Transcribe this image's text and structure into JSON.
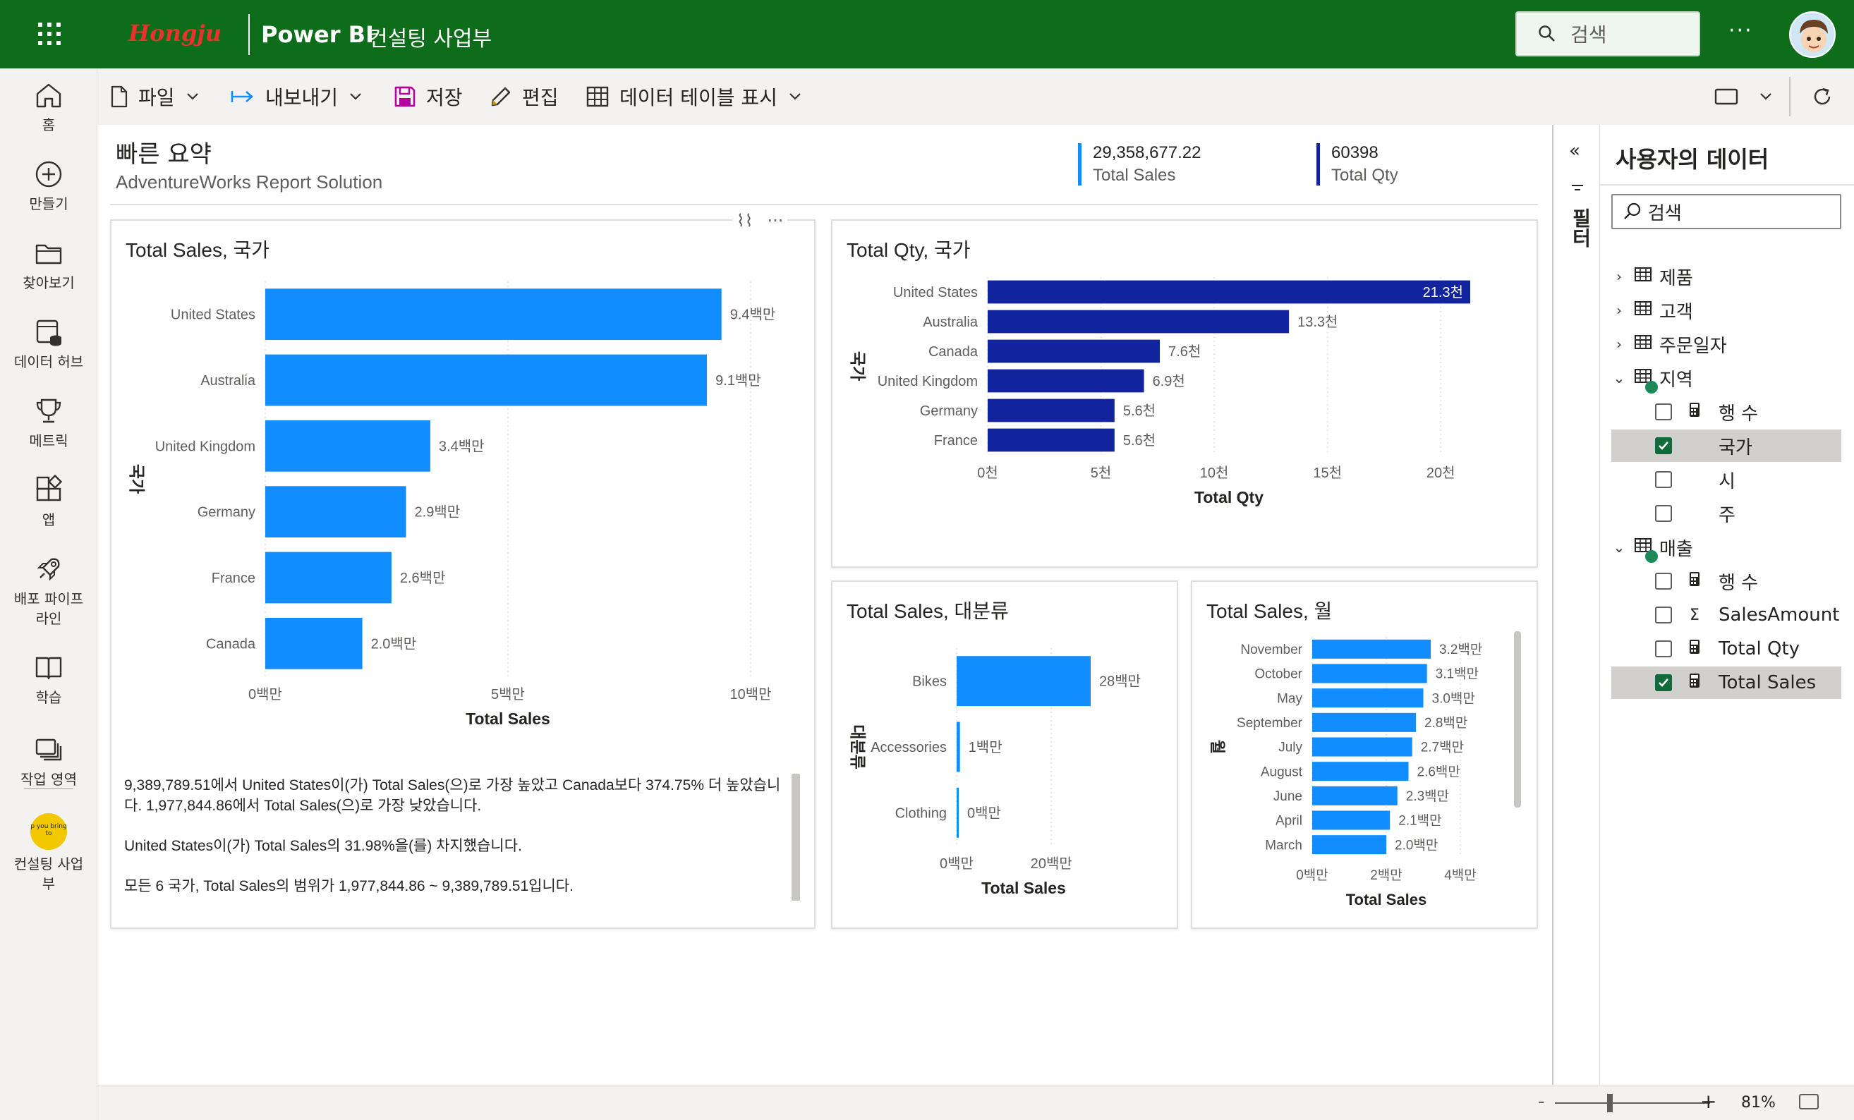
{
  "topbar": {
    "brand": "Hongju",
    "app_title": "Power BI",
    "workspace": "컨설팅 사업부",
    "search_placeholder": "검색",
    "more": "···"
  },
  "nav": {
    "items": [
      {
        "label": "홈",
        "icon": "home-icon"
      },
      {
        "label": "만들기",
        "icon": "create-icon"
      },
      {
        "label": "찾아보기",
        "icon": "browse-icon"
      },
      {
        "label": "데이터 허브",
        "icon": "datahub-icon"
      },
      {
        "label": "메트릭",
        "icon": "metrics-icon"
      },
      {
        "label": "앱",
        "icon": "apps-icon"
      },
      {
        "label": "배포 파이프\n라인",
        "icon": "pipeline-icon"
      },
      {
        "label": "학습",
        "icon": "learn-icon"
      },
      {
        "label": "작업 영역",
        "icon": "workspaces-icon"
      },
      {
        "label": "컨설팅 사업\n부",
        "icon": "workspace-badge-icon"
      }
    ],
    "badge_text": "p you bring to"
  },
  "ribbon": {
    "file": "파일",
    "export": "내보내기",
    "save": "저장",
    "edit": "편집",
    "show_table": "데이터 테이블 표시"
  },
  "report": {
    "title": "빠른 요약",
    "subtitle": "AdventureWorks Report Solution",
    "kpis": [
      {
        "value": "29,358,677.22",
        "label": "Total Sales",
        "color": "#118dff"
      },
      {
        "value": "60398",
        "label": "Total Qty",
        "color": "#12239e"
      }
    ],
    "visual_tools": [
      "⌇⌇",
      "···"
    ],
    "narrative": [
      "9,389,789.51에서 United States이(가) Total Sales(으)로 가장 높았고 Canada보다 374.75% 더 높았습니다. 1,977,844.86에서 Total Sales(으)로 가장 낮았습니다.",
      "United States이(가) Total Sales의 31.98%을(를) 차지했습니다.",
      "모든 6 국가, Total Sales의 범위가 1,977,844.86 ~ 9,389,789.51입니다."
    ]
  },
  "chart_data": [
    {
      "id": "sales_by_country",
      "type": "bar",
      "title": "Total Sales, 국가",
      "xlabel": "Total Sales",
      "ylabel": "국가",
      "categories": [
        "United States",
        "Australia",
        "United Kingdom",
        "Germany",
        "France",
        "Canada"
      ],
      "values": [
        9.4,
        9.1,
        3.4,
        2.9,
        2.6,
        2.0
      ],
      "labels": [
        "9.4백만",
        "9.1백만",
        "3.4백만",
        "2.9백만",
        "2.6백만",
        "2.0백만"
      ],
      "xticks": [
        0,
        5,
        10
      ],
      "xtick_labels": [
        "0백만",
        "5백만",
        "10백만"
      ],
      "xlim": [
        0,
        10
      ],
      "color": "#118dff"
    },
    {
      "id": "qty_by_country",
      "type": "bar",
      "title": "Total Qty, 국가",
      "xlabel": "Total Qty",
      "ylabel": "국가",
      "categories": [
        "United States",
        "Australia",
        "Canada",
        "United Kingdom",
        "Germany",
        "France"
      ],
      "values": [
        21.3,
        13.3,
        7.6,
        6.9,
        5.6,
        5.6
      ],
      "labels": [
        "21.3천",
        "13.3천",
        "7.6천",
        "6.9천",
        "5.6천",
        "5.6천"
      ],
      "xticks": [
        0,
        5,
        10,
        15,
        20
      ],
      "xtick_labels": [
        "0천",
        "5천",
        "10천",
        "15천",
        "20천"
      ],
      "xlim": [
        0,
        21.3
      ],
      "color": "#12239e"
    },
    {
      "id": "sales_by_category",
      "type": "bar",
      "title": "Total Sales, 대분류",
      "xlabel": "Total Sales",
      "ylabel": "대분류",
      "categories": [
        "Bikes",
        "Accessories",
        "Clothing"
      ],
      "values": [
        28.3,
        0.7,
        0.34
      ],
      "labels": [
        "28백만",
        "1백만",
        "0백만"
      ],
      "xticks": [
        0,
        20
      ],
      "xtick_labels": [
        "0백만",
        "20백만"
      ],
      "xlim": [
        0,
        28.3
      ],
      "color": "#118dff"
    },
    {
      "id": "sales_by_month",
      "type": "bar",
      "title": "Total Sales, 월",
      "xlabel": "Total Sales",
      "ylabel": "월",
      "categories": [
        "November",
        "October",
        "May",
        "September",
        "July",
        "August",
        "June",
        "April",
        "March"
      ],
      "values": [
        3.2,
        3.1,
        3.0,
        2.8,
        2.7,
        2.6,
        2.3,
        2.1,
        2.0
      ],
      "labels": [
        "3.2백만",
        "3.1백만",
        "3.0백만",
        "2.8백만",
        "2.7백만",
        "2.6백만",
        "2.3백만",
        "2.1백만",
        "2.0백만"
      ],
      "xticks": [
        0,
        2,
        4
      ],
      "xtick_labels": [
        "0백만",
        "2백만",
        "4백만"
      ],
      "xlim": [
        0,
        4
      ],
      "color": "#118dff"
    }
  ],
  "filter_pane": {
    "label": "필터",
    "collapse": "«"
  },
  "data_pane": {
    "title": "사용자의 데이터",
    "search_placeholder": "검색",
    "tables": [
      {
        "name": "제품",
        "expanded": false
      },
      {
        "name": "고객",
        "expanded": false
      },
      {
        "name": "주문일자",
        "expanded": false
      },
      {
        "name": "지역",
        "expanded": true,
        "fields": [
          {
            "name": "행 수",
            "icon": "calc-icon",
            "checked": false
          },
          {
            "name": "국가",
            "icon": "",
            "checked": true
          },
          {
            "name": "시",
            "icon": "",
            "checked": false
          },
          {
            "name": "주",
            "icon": "",
            "checked": false
          }
        ]
      },
      {
        "name": "매출",
        "expanded": true,
        "fields": [
          {
            "name": "행 수",
            "icon": "calc-icon",
            "checked": false
          },
          {
            "name": "SalesAmount",
            "icon": "sigma-icon",
            "checked": false
          },
          {
            "name": "Total Qty",
            "icon": "calc-icon",
            "checked": false
          },
          {
            "name": "Total Sales",
            "icon": "calc-icon",
            "checked": true
          }
        ]
      }
    ]
  },
  "status": {
    "zoom_minus": "-",
    "zoom_plus": "+",
    "zoom_level": "81%"
  }
}
